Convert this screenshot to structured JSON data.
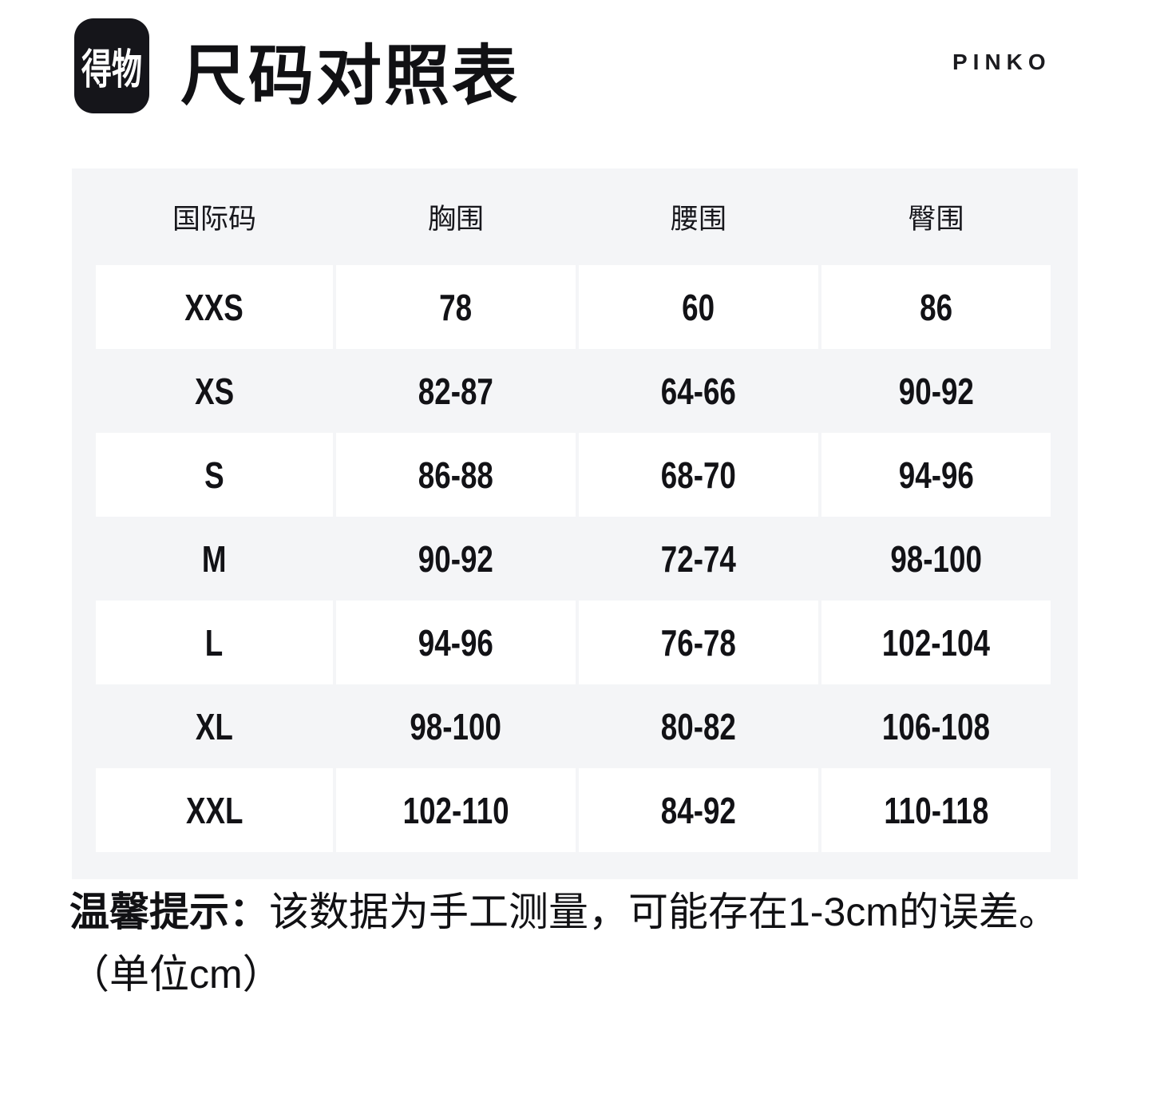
{
  "header": {
    "logo_text": "得物",
    "title": "尺码对照表",
    "brand": "PINKO"
  },
  "table": {
    "columns": [
      "国际码",
      "胸围",
      "腰围",
      "臀围"
    ],
    "rows": [
      [
        "XXS",
        "78",
        "60",
        "86"
      ],
      [
        "XS",
        "82-87",
        "64-66",
        "90-92"
      ],
      [
        "S",
        "86-88",
        "68-70",
        "94-96"
      ],
      [
        "M",
        "90-92",
        "72-74",
        "98-100"
      ],
      [
        "L",
        "94-96",
        "76-78",
        "102-104"
      ],
      [
        "XL",
        "98-100",
        "80-82",
        "106-108"
      ],
      [
        "XXL",
        "102-110",
        "84-92",
        "110-118"
      ]
    ]
  },
  "note": {
    "label": "温馨提示：",
    "text": "该数据为手工测量，可能存在1-3cm的误差。",
    "unit_line": "（单位cm）"
  },
  "colors": {
    "page_bg": "#ffffff",
    "panel_bg": "#f4f5f7",
    "row_white": "#ffffff",
    "logo_bg": "#15151a",
    "logo_text": "#ffffff",
    "text": "#111114"
  }
}
